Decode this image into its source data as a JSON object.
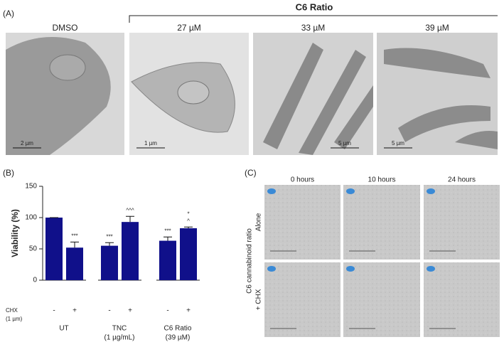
{
  "panel_a": {
    "label": "(A)",
    "header": "C6 Ratio",
    "images": [
      {
        "label": "DMSO",
        "scale": "2 µm"
      },
      {
        "label": "27 µM",
        "scale": "1 µm"
      },
      {
        "label": "33 µM",
        "scale": "5 µm"
      },
      {
        "label": "39 µM",
        "scale": "5 µm"
      }
    ]
  },
  "chart_data": {
    "type": "bar",
    "panel_label": "(B)",
    "y_label": "Viability (%)",
    "categories": [
      "-",
      "+",
      "-",
      "+",
      "-",
      "+"
    ],
    "values": [
      100,
      52,
      55,
      93,
      63,
      83
    ],
    "errors": [
      0,
      9,
      5,
      9,
      6,
      2
    ],
    "significance": [
      [],
      [
        "***"
      ],
      [
        "***"
      ],
      [
        "^^^"
      ],
      [
        "***"
      ],
      [
        "*",
        "^"
      ]
    ],
    "color": "#10108a",
    "ylim": [
      0,
      150
    ],
    "yticks": [
      0,
      50,
      100,
      150
    ],
    "row_label": [
      "CHX",
      "(1 µm)"
    ],
    "groups": [
      [
        "UT"
      ],
      [
        "TNC",
        "(1 µg/mL)"
      ],
      [
        "C6 Ratio",
        "(39 µM)"
      ]
    ]
  },
  "panel_c": {
    "label": "(C)",
    "columns": [
      "0 hours",
      "10 hours",
      "24 hours"
    ],
    "rows": [
      "Alone",
      "+ CHX"
    ],
    "side_label": "C6 cannabinoid ratio"
  }
}
